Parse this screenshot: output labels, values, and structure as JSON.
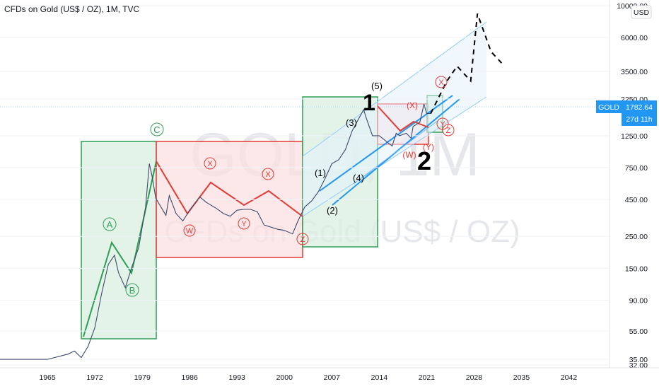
{
  "header": {
    "title": "CFDs on Gold (US$ / OZ), 1M, TVC"
  },
  "watermark": {
    "symbol": "GOLD, 1M",
    "name": "CFDs on Gold (US$ / OZ)"
  },
  "price_axis": {
    "currency": "USD"
  },
  "price_tag": {
    "symbol": "GOLD",
    "price": "1782.64",
    "countdown": "27d 11h"
  },
  "colors": {
    "green": "#2e9e57",
    "green_fill": "#d9efe0",
    "red": "#e53935",
    "red_fill": "#fbe0e0",
    "blue": "#2196f3",
    "channel": "#90caf9",
    "price_line": "#3c4a6b"
  },
  "chart_data": {
    "type": "line",
    "yscale": "log",
    "ylim": [
      32,
      10000
    ],
    "xlim": [
      1958,
      2048
    ],
    "x_ticks": [
      1965,
      1972,
      1979,
      1986,
      1993,
      2000,
      2007,
      2014,
      2021,
      2028,
      2035,
      2042
    ],
    "y_ticks": [
      {
        "value": 10000,
        "label": "10000.00"
      },
      {
        "value": 6000,
        "label": "6000.00"
      },
      {
        "value": 3500,
        "label": "3500.00"
      },
      {
        "value": 2250,
        "label": "2250.00"
      },
      {
        "value": 1250,
        "label": "1250.00"
      },
      {
        "value": 750,
        "label": "750.00"
      },
      {
        "value": 450,
        "label": "450.00"
      },
      {
        "value": 250,
        "label": "250.00"
      },
      {
        "value": 150,
        "label": "150.00"
      },
      {
        "value": 90,
        "label": "90.00"
      },
      {
        "value": 55,
        "label": "55.00"
      },
      {
        "value": 35,
        "label": "35.00"
      },
      {
        "value": 32,
        "label": "32.00"
      }
    ],
    "series": [
      {
        "x": [
          1958,
          1960,
          1965,
          1968,
          1969,
          1970,
          1971,
          1972,
          1973,
          1974,
          1974.9,
          1975.5,
          1976.5,
          1977.5,
          1978.5,
          1979.5,
          1980.05,
          1980.5,
          1981,
          1982.5,
          1983,
          1984,
          1985,
          1986,
          1987.5,
          1988.5,
          1990,
          1991,
          1992,
          1993,
          1994,
          1995,
          1996,
          1997,
          1998,
          1999,
          2000,
          2001.2,
          2002,
          2003,
          2004,
          2005,
          2006,
          2007,
          2008,
          2009,
          2010,
          2011.7,
          2012,
          2013,
          2014,
          2015.9,
          2016.5,
          2017,
          2018,
          2018.7,
          2019,
          2020,
          2020.6,
          2021,
          2021.6
        ],
        "y": [
          35,
          35,
          35,
          38,
          40,
          36,
          43,
          58,
          100,
          160,
          185,
          140,
          110,
          155,
          210,
          400,
          800,
          640,
          460,
          350,
          480,
          360,
          320,
          380,
          470,
          430,
          390,
          360,
          345,
          380,
          385,
          385,
          370,
          300,
          290,
          280,
          275,
          260,
          320,
          400,
          440,
          510,
          630,
          800,
          850,
          1000,
          1350,
          1900,
          1700,
          1250,
          1250,
          1060,
          1300,
          1250,
          1300,
          1200,
          1450,
          1550,
          2070,
          1780,
          1782.64
        ]
      }
    ],
    "projection": {
      "x": [
        2021.6,
        2024,
        2025.5,
        2027.5,
        2028.5,
        2030.5,
        2032.5
      ],
      "y": [
        1782.64,
        3000,
        3800,
        3000,
        8800,
        4800,
        3800
      ]
    },
    "annotations": [
      {
        "label": "A",
        "color": "green"
      },
      {
        "label": "B",
        "color": "green"
      },
      {
        "label": "C",
        "color": "green"
      },
      {
        "label": "W",
        "color": "red"
      },
      {
        "label": "X",
        "color": "red"
      },
      {
        "label": "Y",
        "color": "red"
      },
      {
        "label": "X",
        "color": "red"
      },
      {
        "label": "Z",
        "color": "red"
      },
      {
        "label": "(1)",
        "color": "black"
      },
      {
        "label": "(2)",
        "color": "black"
      },
      {
        "label": "(3)",
        "color": "black"
      },
      {
        "label": "(4)",
        "color": "black"
      },
      {
        "label": "(5)",
        "color": "black"
      },
      {
        "label": "1",
        "color": "black"
      },
      {
        "label": "2",
        "color": "black"
      },
      {
        "label": "(X)",
        "color": "red"
      },
      {
        "label": "(W)",
        "color": "red"
      },
      {
        "label": "(Y)",
        "color": "red"
      },
      {
        "label": "X",
        "color": "red"
      },
      {
        "label": "Y",
        "color": "red"
      },
      {
        "label": "Z",
        "color": "red"
      }
    ]
  }
}
